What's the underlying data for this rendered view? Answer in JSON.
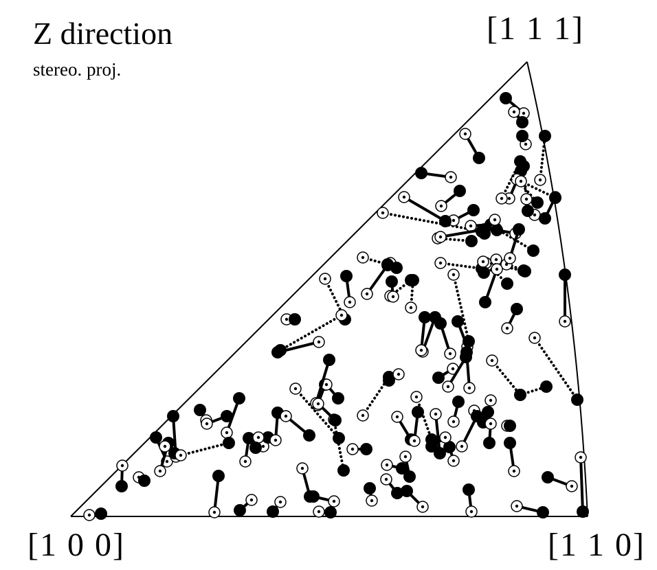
{
  "title": "Z direction",
  "subtitle": "stereo. proj.",
  "corners": {
    "top": "[1 1 1]",
    "left": "[1 0 0]",
    "right": "[1 1 0]"
  },
  "legend": {
    "start_marker": "open circle with dot",
    "end_marker": "filled circle"
  },
  "colors": {
    "ink": "#000000",
    "background": "#ffffff"
  }
}
